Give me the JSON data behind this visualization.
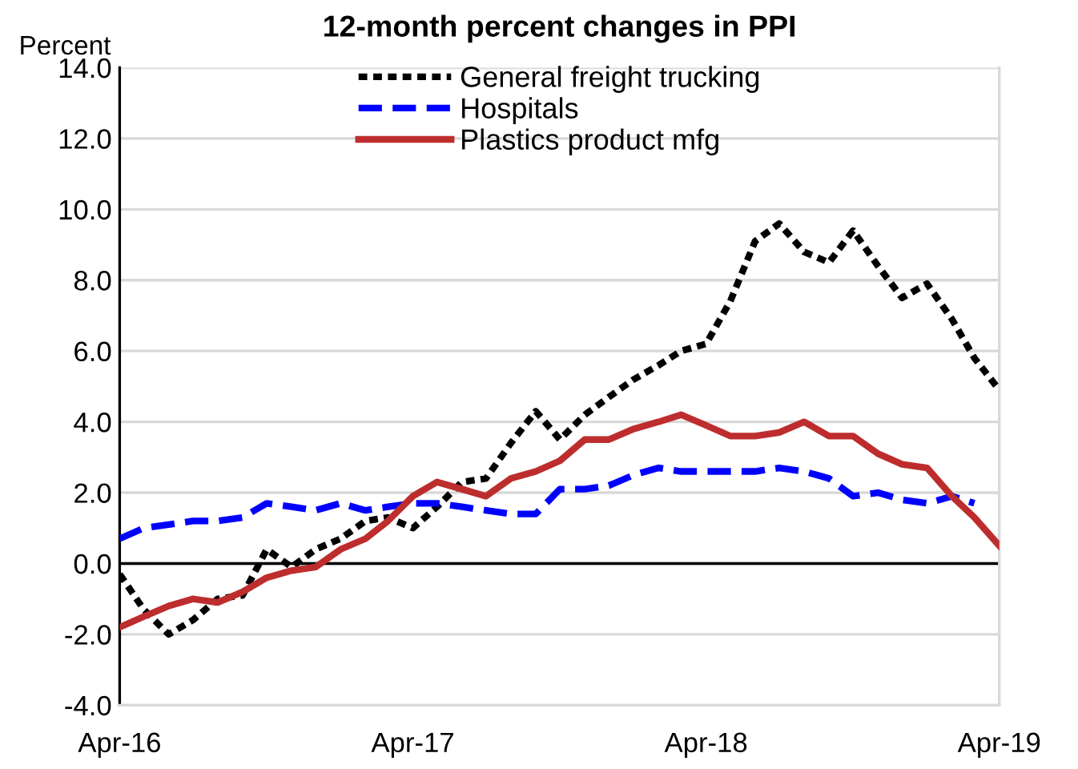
{
  "chart_data": {
    "type": "line",
    "title": "12-month percent changes in PPI",
    "ylabel": "Percent",
    "x": [
      "2016-04",
      "2016-05",
      "2016-06",
      "2016-07",
      "2016-08",
      "2016-09",
      "2016-10",
      "2016-11",
      "2016-12",
      "2017-01",
      "2017-02",
      "2017-03",
      "2017-04",
      "2017-05",
      "2017-06",
      "2017-07",
      "2017-08",
      "2017-09",
      "2017-10",
      "2017-11",
      "2017-12",
      "2018-01",
      "2018-02",
      "2018-03",
      "2018-04",
      "2018-05",
      "2018-06",
      "2018-07",
      "2018-08",
      "2018-09",
      "2018-10",
      "2018-11",
      "2018-12",
      "2019-01",
      "2019-02",
      "2019-03",
      "2019-04"
    ],
    "series": [
      {
        "name": "General freight trucking",
        "color": "#000000",
        "line_style": "dashed",
        "values": [
          -0.3,
          -1.3,
          -2.0,
          -1.6,
          -1.0,
          -0.9,
          0.4,
          -0.1,
          0.4,
          0.7,
          1.2,
          1.3,
          1.0,
          1.6,
          2.3,
          2.4,
          3.4,
          4.3,
          3.5,
          4.2,
          4.7,
          5.2,
          5.6,
          6.0,
          6.2,
          7.4,
          9.1,
          9.6,
          8.8,
          8.5,
          9.4,
          8.4,
          7.5,
          7.9,
          6.9,
          5.8,
          4.9
        ]
      },
      {
        "name": "Hospitals",
        "color": "#0000ff",
        "line_style": "dashed",
        "values": [
          0.7,
          1.0,
          1.1,
          1.2,
          1.2,
          1.3,
          1.7,
          1.6,
          1.5,
          1.7,
          1.5,
          1.6,
          1.7,
          1.7,
          1.6,
          1.5,
          1.4,
          1.4,
          2.1,
          2.1,
          2.2,
          2.5,
          2.7,
          2.6,
          2.6,
          2.6,
          2.6,
          2.7,
          2.6,
          2.4,
          1.9,
          2.0,
          1.8,
          1.7,
          1.9,
          1.7,
          null
        ]
      },
      {
        "name": "Plastics product mfg",
        "color": "#be2d2d",
        "line_style": "solid",
        "values": [
          -1.8,
          -1.5,
          -1.2,
          -1.0,
          -1.1,
          -0.8,
          -0.4,
          -0.2,
          -0.1,
          0.4,
          0.7,
          1.2,
          1.9,
          2.3,
          2.1,
          1.9,
          2.4,
          2.6,
          2.9,
          3.5,
          3.5,
          3.8,
          4.0,
          4.2,
          3.9,
          3.6,
          3.6,
          3.7,
          4.0,
          3.6,
          3.6,
          3.1,
          2.8,
          2.7,
          1.9,
          1.3,
          0.5
        ]
      }
    ],
    "xlim": [
      "2016-04",
      "2019-04"
    ],
    "xticks": [
      {
        "value": "2016-04",
        "label": "Apr-16"
      },
      {
        "value": "2017-04",
        "label": "Apr-17"
      },
      {
        "value": "2018-04",
        "label": "Apr-18"
      },
      {
        "value": "2019-04",
        "label": "Apr-19"
      }
    ],
    "ylim": [
      -4,
      14
    ],
    "yticks": [
      {
        "value": -4,
        "label": "-4.0"
      },
      {
        "value": -2,
        "label": "-2.0"
      },
      {
        "value": 0,
        "label": "0.0"
      },
      {
        "value": 2,
        "label": "2.0"
      },
      {
        "value": 4,
        "label": "4.0"
      },
      {
        "value": 6,
        "label": "6.0"
      },
      {
        "value": 8,
        "label": "8.0"
      },
      {
        "value": 10,
        "label": "10.0"
      },
      {
        "value": 12,
        "label": "12.0"
      },
      {
        "value": 14,
        "label": "14.0"
      }
    ],
    "ref_lines": [
      {
        "axis": "y",
        "value": 0,
        "color": "#000000"
      }
    ],
    "grid": "y",
    "legend": "top",
    "marker": "none"
  }
}
